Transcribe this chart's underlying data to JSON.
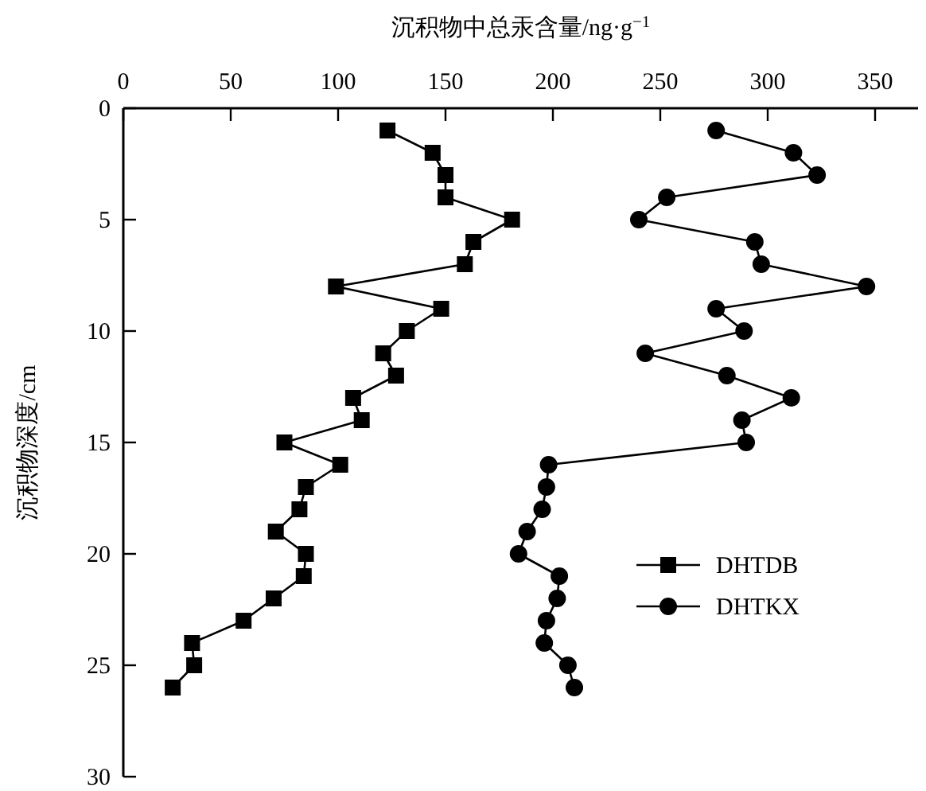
{
  "chart_data": {
    "type": "line",
    "xlabel": "沉积物中总汞含量/ng·g$^{−1}$",
    "ylabel": "沉积物深度/cm",
    "xlim": [
      0,
      370
    ],
    "xticks": [
      0,
      50,
      100,
      150,
      200,
      250,
      300,
      350
    ],
    "ylim": [
      30,
      0
    ],
    "yticks": [
      0,
      5,
      10,
      15,
      20,
      25,
      30
    ],
    "grid": false,
    "legend": "right",
    "line_style": "solid",
    "series": [
      {
        "name": "DHTDB",
        "color": "#000000",
        "marker": "square",
        "x": [
          123,
          144,
          150,
          150,
          181,
          163,
          159,
          99,
          148,
          132,
          121,
          127,
          107,
          111,
          75,
          101,
          85,
          82,
          71,
          85,
          84,
          70,
          56,
          32,
          33,
          23
        ],
        "values": [
          1,
          2,
          3,
          4,
          5,
          6,
          7,
          8,
          9,
          10,
          11,
          12,
          13,
          14,
          15,
          16,
          17,
          18,
          19,
          20,
          21,
          22,
          23,
          24,
          25,
          26
        ]
      },
      {
        "name": "DHTKX",
        "color": "#000000",
        "marker": "circle",
        "x": [
          276,
          312,
          323,
          253,
          240,
          294,
          297,
          346,
          276,
          289,
          243,
          281,
          311,
          288,
          290,
          198,
          197,
          195,
          188,
          184,
          203,
          202,
          197,
          196,
          207,
          210
        ],
        "values": [
          1,
          2,
          3,
          4,
          5,
          6,
          7,
          8,
          9,
          10,
          11,
          12,
          13,
          14,
          15,
          16,
          17,
          18,
          19,
          20,
          21,
          22,
          23,
          24,
          25,
          26
        ]
      }
    ]
  }
}
